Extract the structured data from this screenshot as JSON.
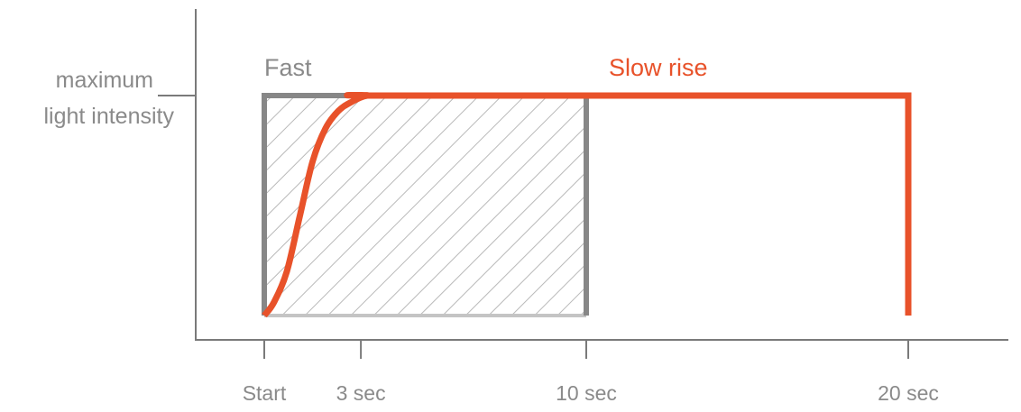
{
  "chart_data": {
    "type": "line",
    "title": "",
    "xlabel": "",
    "ylabel": "",
    "y_tick_labels": [
      "maximum",
      "light intensity"
    ],
    "x_tick_labels": [
      "Start",
      "3 sec",
      "10 sec",
      "20 sec"
    ],
    "x_ticks": [
      0,
      3,
      10,
      20
    ],
    "xlim": [
      0,
      23.5
    ],
    "ylim": [
      0,
      1.1
    ],
    "grid": false,
    "series": [
      {
        "name": "Fast",
        "color": "#878787",
        "style": "hatched-box",
        "x": [
          0,
          0,
          10,
          10
        ],
        "y": [
          0,
          1,
          1,
          0
        ]
      },
      {
        "name": "Slow rise",
        "color": "#e8522a",
        "x": [
          0,
          0.3,
          0.7,
          1.1,
          1.5,
          1.9,
          2.3,
          2.7,
          3.2,
          4,
          20,
          20
        ],
        "y": [
          0,
          0.06,
          0.2,
          0.45,
          0.7,
          0.85,
          0.93,
          0.97,
          1,
          1,
          1,
          0
        ]
      }
    ],
    "colors": {
      "axis": "#7a7a7a",
      "label": "#8a8a8a",
      "hatch": "#b9b9b9"
    }
  }
}
